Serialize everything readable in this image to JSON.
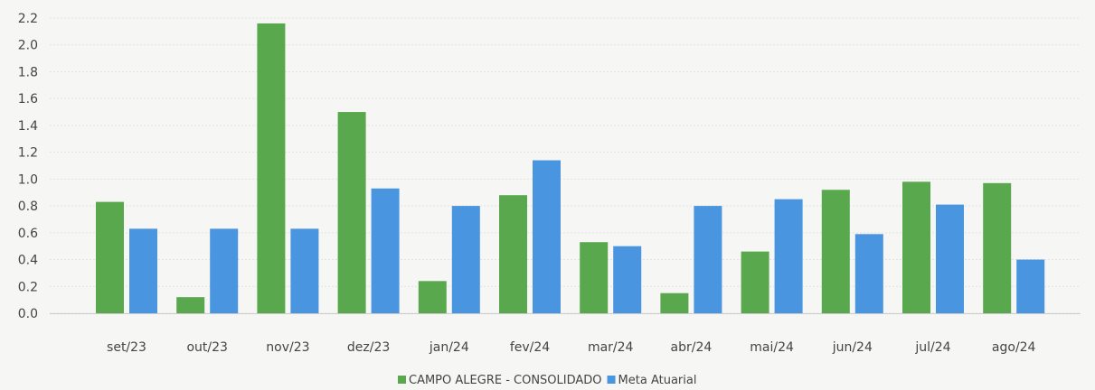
{
  "chart_data": {
    "type": "bar",
    "title": "",
    "xlabel": "",
    "ylabel": "",
    "categories": [
      "set/23",
      "out/23",
      "nov/23",
      "dez/23",
      "jan/24",
      "fev/24",
      "mar/24",
      "abr/24",
      "mai/24",
      "jun/24",
      "jul/24",
      "ago/24"
    ],
    "series": [
      {
        "name": "CAMPO ALEGRE - CONSOLIDADO",
        "color": "#5aa84e",
        "values": [
          0.83,
          0.12,
          2.16,
          1.5,
          0.24,
          0.88,
          0.53,
          0.15,
          0.46,
          0.92,
          0.98,
          0.97
        ]
      },
      {
        "name": "Meta Atuarial",
        "color": "#4a95e0",
        "values": [
          0.63,
          0.63,
          0.63,
          0.93,
          0.8,
          1.14,
          0.5,
          0.8,
          0.85,
          0.59,
          0.81,
          0.4
        ]
      }
    ],
    "yticks": [
      "0.0",
      "0.2",
      "0.4",
      "0.6",
      "0.8",
      "1.0",
      "1.2",
      "1.4",
      "1.6",
      "1.8",
      "2.0",
      "2.2"
    ],
    "ylim": [
      0,
      2.2
    ],
    "grid": true,
    "legend_position": "bottom-center"
  }
}
